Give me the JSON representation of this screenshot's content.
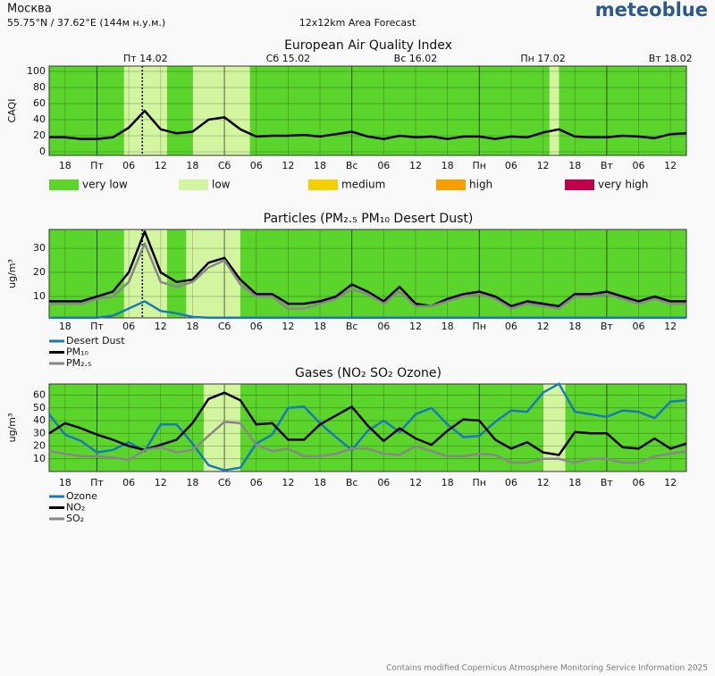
{
  "header": {
    "city": "Москва",
    "coords": "55.75°N / 37.62°E (144м н.у.м.)",
    "forecast": "12x12km Area Forecast",
    "logo": "meteoblue"
  },
  "footer": "Contains modified Copernicus Atmosphere Monitoring Service Information 2025",
  "time_axis": {
    "xticks": [
      "18",
      "Пт",
      "06",
      "12",
      "18",
      "Сб",
      "06",
      "12",
      "18",
      "Вс",
      "06",
      "12",
      "18",
      "Пн",
      "06",
      "12",
      "18",
      "Вт",
      "06",
      "12"
    ],
    "day_labels": [
      "Пт 14.02",
      "Сб 15.02",
      "Вс 16.02",
      "Пн 17.02",
      "Вт 18.02"
    ]
  },
  "legend": [
    {
      "label": "very low",
      "color": "#5bd42b"
    },
    {
      "label": "low",
      "color": "#d3f59f"
    },
    {
      "label": "medium",
      "color": "#f5d000"
    },
    {
      "label": "high",
      "color": "#f5a000"
    },
    {
      "label": "very high",
      "color": "#c0004a"
    }
  ],
  "chart_data": [
    {
      "type": "line",
      "title": "European Air Quality Index",
      "ylabel": "CAQI",
      "ylim": [
        -4.4,
        106.7
      ],
      "yticks": [
        0,
        20,
        40,
        60,
        80,
        100
      ],
      "bands": [
        {
          "from": 4.7,
          "to": 7.4
        },
        {
          "from": 9.0,
          "to": 12.6
        },
        {
          "from": 31.4,
          "to": 32.0
        }
      ],
      "series": [
        {
          "name": "CAQI",
          "color": "#000000",
          "values": [
            18,
            18,
            16,
            16,
            18,
            30,
            51,
            28,
            23,
            25,
            40,
            43,
            28,
            19,
            20,
            20,
            21,
            19,
            22,
            25,
            19,
            16,
            20,
            18,
            19,
            16,
            19,
            19,
            16,
            19,
            18,
            24,
            28,
            19,
            18,
            18,
            20,
            19,
            17,
            22,
            23
          ]
        }
      ]
    },
    {
      "type": "line",
      "title": "Particles (PM₂.₅ PM₁₀ Desert Dust)",
      "ylabel": "ug/m³",
      "ylim": [
        1.1,
        37.8
      ],
      "yticks": [
        10,
        20,
        30
      ],
      "bands": [
        {
          "from": 4.7,
          "to": 7.4
        },
        {
          "from": 8.6,
          "to": 12.0
        }
      ],
      "series": [
        {
          "name": "Desert Dust",
          "color": "#1a7ab8",
          "values": [
            1.2,
            1.2,
            1.2,
            1.2,
            2,
            5,
            8,
            4,
            3,
            1.5,
            1.2,
            1.2,
            1.2,
            1.2,
            1.2,
            1.2,
            1.2,
            1.2,
            1.2,
            1.2,
            1.2,
            1.2,
            1.2,
            1.2,
            1.2,
            1.2,
            1.2,
            1.2,
            1.2,
            1.2,
            1.2,
            1.2,
            1.2,
            1.2,
            1.2,
            1.2,
            1.2,
            1.2,
            1.2,
            1.2,
            1.2
          ]
        },
        {
          "name": "PM₁₀",
          "color": "#000000",
          "values": [
            8,
            8,
            8,
            10,
            12,
            20,
            37,
            20,
            16,
            17,
            24,
            26,
            17,
            11,
            11,
            7,
            7,
            8,
            10,
            15,
            12,
            8,
            14,
            7,
            6,
            9,
            11,
            12,
            10,
            6,
            8,
            7,
            6,
            11,
            11,
            12,
            10,
            8,
            10,
            8,
            8
          ]
        },
        {
          "name": "PM₂.₅",
          "color": "#888888",
          "values": [
            7,
            7,
            7,
            9,
            10,
            16,
            32,
            16,
            14,
            16,
            22,
            25,
            15,
            10,
            10,
            5,
            5,
            7,
            9,
            13,
            11,
            7,
            12,
            6,
            6,
            8,
            10,
            11,
            9,
            5,
            7,
            6,
            5,
            10,
            10,
            11,
            9,
            7,
            9,
            7,
            7
          ]
        }
      ]
    },
    {
      "type": "line",
      "title": "Gases (NO₂ SO₂ Ozone)",
      "ylabel": "ug/m³",
      "ylim": [
        0,
        68.8
      ],
      "yticks": [
        10,
        20,
        30,
        40,
        50,
        60
      ],
      "bands": [
        {
          "from": 9.7,
          "to": 12.0
        },
        {
          "from": 31.0,
          "to": 32.4
        }
      ],
      "series": [
        {
          "name": "Ozone",
          "color": "#1a7ab8",
          "values": [
            45,
            29,
            24,
            15,
            17,
            23,
            16,
            37,
            37,
            22,
            5,
            1,
            3,
            22,
            29,
            50,
            51,
            38,
            27,
            17,
            32,
            40,
            31,
            45,
            50,
            37,
            27,
            28,
            39,
            48,
            47,
            62,
            69,
            47,
            45,
            43,
            48,
            47,
            42,
            55,
            56
          ]
        },
        {
          "name": "NO₂",
          "color": "#000000",
          "values": [
            30,
            38,
            34,
            29,
            25,
            20,
            17,
            21,
            25,
            38,
            57,
            62,
            56,
            37,
            38,
            25,
            25,
            37,
            44,
            51,
            36,
            24,
            34,
            26,
            21,
            32,
            41,
            40,
            25,
            18,
            23,
            15,
            13,
            31,
            30,
            30,
            19,
            18,
            26,
            18,
            22
          ]
        },
        {
          "name": "SO₂",
          "color": "#888888",
          "values": [
            16,
            14,
            12,
            12,
            11,
            9,
            17,
            19,
            15,
            17,
            28,
            39,
            38,
            21,
            16,
            18,
            12,
            12,
            14,
            18,
            18,
            14,
            13,
            20,
            16,
            12,
            12,
            14,
            13,
            7,
            7,
            10,
            10,
            7,
            10,
            10,
            7,
            7,
            12,
            14,
            16
          ]
        }
      ]
    }
  ]
}
